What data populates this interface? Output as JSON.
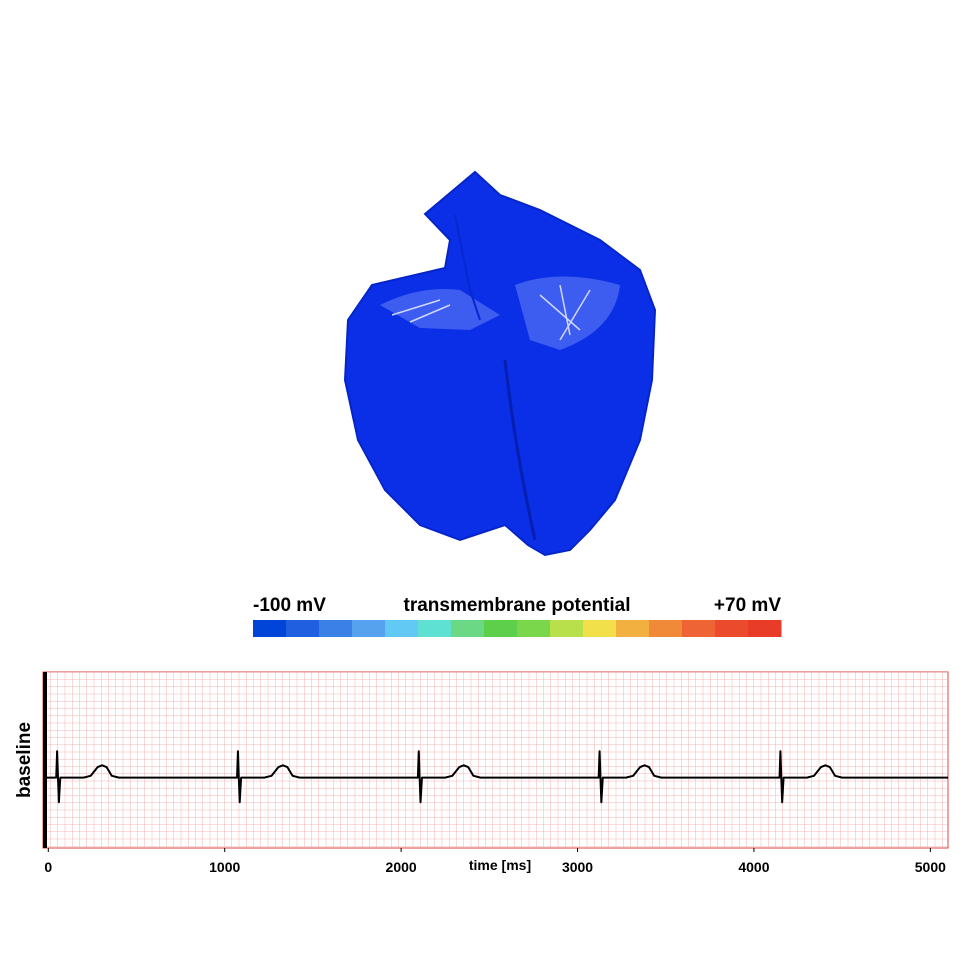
{
  "colorbar": {
    "min_label": "-100 mV",
    "title": "transmembrane potential",
    "max_label": "+70 mV",
    "colors": [
      "#0044d8",
      "#1f5fe0",
      "#3b80e6",
      "#56a2ee",
      "#62c8f4",
      "#5ee0d2",
      "#6ad884",
      "#5ecf4a",
      "#7ad64a",
      "#b8e04a",
      "#f2e04a",
      "#f2b040",
      "#f08a38",
      "#ee6434",
      "#ec4a2c",
      "#e83c28"
    ]
  },
  "chart_data": {
    "type": "line",
    "y_label": "baseline",
    "x_label": "time [ms]",
    "xlim": [
      -30,
      5100
    ],
    "ylim": [
      -0.4,
      0.6
    ],
    "xticks": [
      0,
      1000,
      2000,
      3000,
      4000,
      5000
    ],
    "x": [
      -30,
      0,
      45,
      50,
      55,
      60,
      68,
      200,
      240,
      280,
      305,
      330,
      360,
      400,
      1025,
      1070,
      1075,
      1080,
      1085,
      1093,
      1225,
      1265,
      1305,
      1330,
      1355,
      1385,
      1425,
      2050,
      2095,
      2100,
      2105,
      2110,
      2118,
      2250,
      2290,
      2330,
      2355,
      2380,
      2410,
      2450,
      3075,
      3120,
      3125,
      3130,
      3135,
      3143,
      3275,
      3315,
      3355,
      3380,
      3405,
      3435,
      3475,
      4100,
      4145,
      4150,
      4155,
      4160,
      4168,
      4300,
      4340,
      4380,
      4405,
      4430,
      4460,
      4500,
      5100
    ],
    "series": [
      {
        "color": "#000000",
        "values": [
          0,
          0,
          0,
          0.15,
          0,
          -0.14,
          0,
          0,
          0.01,
          0.06,
          0.07,
          0.06,
          0.01,
          0,
          0,
          0,
          0.15,
          0,
          -0.14,
          0,
          0,
          0.01,
          0.06,
          0.07,
          0.06,
          0.01,
          0,
          0,
          0,
          0.15,
          0,
          -0.14,
          0,
          0,
          0.01,
          0.06,
          0.07,
          0.06,
          0.01,
          0,
          0,
          0,
          0.15,
          0,
          -0.14,
          0,
          0,
          0.01,
          0.06,
          0.07,
          0.06,
          0.01,
          0,
          0,
          0,
          0.15,
          0,
          -0.14,
          0,
          0,
          0.01,
          0.06,
          0.07,
          0.06,
          0.01,
          0,
          0
        ]
      }
    ]
  }
}
